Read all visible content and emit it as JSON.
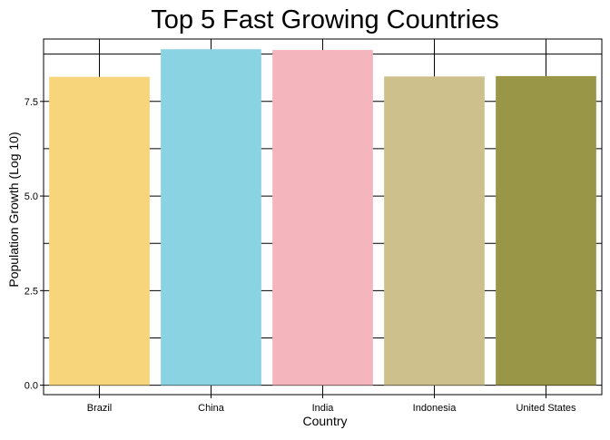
{
  "chart_data": {
    "type": "bar",
    "title": "Top 5 Fast Growing Countries",
    "xlabel": "Country",
    "ylabel": "Population Growth (Log 10)",
    "categories": [
      "Brazil",
      "China",
      "India",
      "Indonesia",
      "United States"
    ],
    "values": [
      8.15,
      8.88,
      8.86,
      8.16,
      8.17
    ],
    "colors": [
      "#F7D57A",
      "#89D3E3",
      "#F4B5BC",
      "#CEC08C",
      "#9A9648"
    ],
    "ylim": [
      -0.25,
      9.15
    ],
    "y_ticks": [
      0,
      2.5,
      5,
      7.5
    ],
    "y_tick_labels": [
      "0.0",
      "2.5",
      "5.0",
      "7.5"
    ],
    "y_minor_gridlines": [
      1.25,
      3.75,
      6.25,
      8.75
    ],
    "grid": true,
    "legend": "none"
  }
}
